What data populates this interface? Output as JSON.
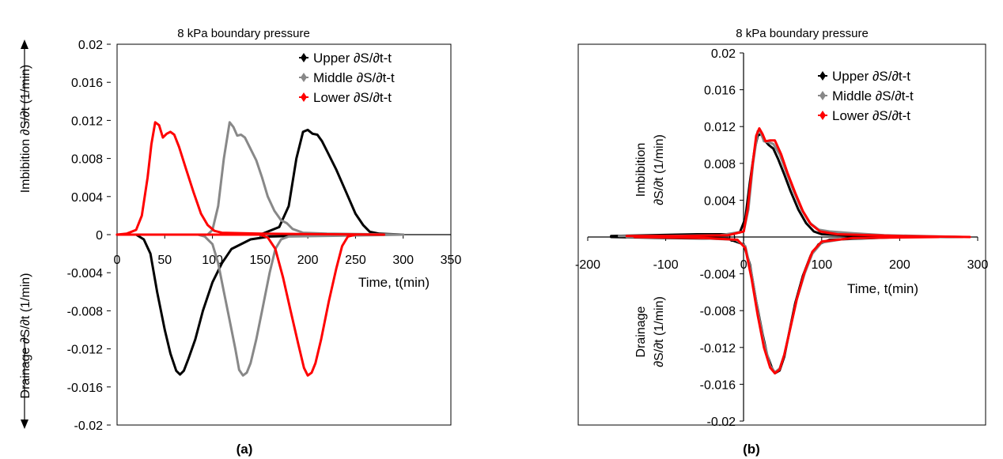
{
  "chart_data": [
    {
      "panel_label": "(a)",
      "type": "line",
      "title": "8 kPa boundary pressure",
      "xlabel": "Time, t(min)",
      "ylabel_top": "Imbibition ∂S/∂t (1/min)",
      "ylabel_bottom": "Drainage ∂S/∂t (1/min)",
      "xlim": [
        0,
        350
      ],
      "ylim": [
        -0.02,
        0.02
      ],
      "x_ticks": [
        "0",
        "50",
        "100",
        "150",
        "200",
        "250",
        "300",
        "350"
      ],
      "y_ticks": [
        "0.02",
        "0.016",
        "0.012",
        "0.008",
        "0.004",
        "0",
        "-0.004",
        "-0.008",
        "-0.012",
        "-0.016",
        "-0.02"
      ],
      "legend_position": "top-right",
      "series": [
        {
          "name": "Upper ∂S/∂t-t",
          "color": "#000000",
          "imbibition": [
            [
              0,
              0
            ],
            [
              150,
              0
            ],
            [
              170,
              0.0008
            ],
            [
              180,
              0.003
            ],
            [
              188,
              0.008
            ],
            [
              195,
              0.0108
            ],
            [
              200,
              0.011
            ],
            [
              205,
              0.0106
            ],
            [
              210,
              0.0105
            ],
            [
              215,
              0.0098
            ],
            [
              220,
              0.0088
            ],
            [
              230,
              0.0068
            ],
            [
              240,
              0.0045
            ],
            [
              250,
              0.0022
            ],
            [
              258,
              0.001
            ],
            [
              265,
              0.0003
            ],
            [
              275,
              0.0001
            ],
            [
              300,
              0
            ]
          ],
          "drainage": [
            [
              0,
              0
            ],
            [
              20,
              0
            ],
            [
              28,
              -0.0005
            ],
            [
              35,
              -0.002
            ],
            [
              42,
              -0.006
            ],
            [
              50,
              -0.01
            ],
            [
              56,
              -0.0125
            ],
            [
              62,
              -0.0143
            ],
            [
              66,
              -0.0147
            ],
            [
              70,
              -0.0143
            ],
            [
              75,
              -0.013
            ],
            [
              82,
              -0.011
            ],
            [
              90,
              -0.008
            ],
            [
              100,
              -0.005
            ],
            [
              110,
              -0.003
            ],
            [
              120,
              -0.0015
            ],
            [
              140,
              -0.0005
            ],
            [
              160,
              -0.0002
            ],
            [
              200,
              -0.0001
            ],
            [
              250,
              0
            ]
          ]
        },
        {
          "name": "Middle ∂S/∂t-t",
          "color": "#888888",
          "imbibition": [
            [
              0,
              0
            ],
            [
              95,
              0
            ],
            [
              100,
              0.0005
            ],
            [
              106,
              0.003
            ],
            [
              112,
              0.008
            ],
            [
              118,
              0.0118
            ],
            [
              122,
              0.0113
            ],
            [
              126,
              0.0104
            ],
            [
              130,
              0.0105
            ],
            [
              134,
              0.0102
            ],
            [
              140,
              0.009
            ],
            [
              146,
              0.0078
            ],
            [
              152,
              0.006
            ],
            [
              158,
              0.004
            ],
            [
              165,
              0.0025
            ],
            [
              172,
              0.0015
            ],
            [
              178,
              0.0012
            ],
            [
              184,
              0.0006
            ],
            [
              195,
              0.0002
            ],
            [
              220,
              0.0001
            ],
            [
              300,
              0
            ]
          ],
          "drainage": [
            [
              0,
              0
            ],
            [
              85,
              0
            ],
            [
              92,
              -0.0002
            ],
            [
              100,
              -0.001
            ],
            [
              106,
              -0.003
            ],
            [
              112,
              -0.006
            ],
            [
              118,
              -0.009
            ],
            [
              124,
              -0.012
            ],
            [
              128,
              -0.0142
            ],
            [
              132,
              -0.0148
            ],
            [
              136,
              -0.0145
            ],
            [
              140,
              -0.0135
            ],
            [
              146,
              -0.011
            ],
            [
              152,
              -0.008
            ],
            [
              160,
              -0.004
            ],
            [
              166,
              -0.0015
            ],
            [
              172,
              -0.0005
            ],
            [
              180,
              -0.0002
            ],
            [
              240,
              -0.0001
            ],
            [
              300,
              0
            ]
          ]
        },
        {
          "name": "Lower ∂S/∂t-t",
          "color": "#ff0000",
          "imbibition": [
            [
              0,
              0
            ],
            [
              10,
              0.0001
            ],
            [
              20,
              0.0005
            ],
            [
              26,
              0.002
            ],
            [
              32,
              0.006
            ],
            [
              36,
              0.0095
            ],
            [
              40,
              0.0118
            ],
            [
              44,
              0.0115
            ],
            [
              48,
              0.0102
            ],
            [
              52,
              0.0106
            ],
            [
              56,
              0.0108
            ],
            [
              60,
              0.0105
            ],
            [
              65,
              0.0092
            ],
            [
              72,
              0.007
            ],
            [
              80,
              0.0045
            ],
            [
              88,
              0.0022
            ],
            [
              95,
              0.001
            ],
            [
              102,
              0.0004
            ],
            [
              110,
              0.0002
            ],
            [
              150,
              0.0001
            ],
            [
              280,
              0
            ]
          ],
          "drainage": [
            [
              0,
              0
            ],
            [
              150,
              0
            ],
            [
              158,
              -0.0003
            ],
            [
              166,
              -0.0015
            ],
            [
              174,
              -0.0045
            ],
            [
              182,
              -0.008
            ],
            [
              190,
              -0.0115
            ],
            [
              196,
              -0.014
            ],
            [
              200,
              -0.0148
            ],
            [
              204,
              -0.0145
            ],
            [
              208,
              -0.0135
            ],
            [
              214,
              -0.011
            ],
            [
              222,
              -0.007
            ],
            [
              230,
              -0.0035
            ],
            [
              236,
              -0.0012
            ],
            [
              242,
              -0.0002
            ],
            [
              250,
              0
            ]
          ]
        }
      ]
    },
    {
      "panel_label": "(b)",
      "type": "line",
      "title": "8 kPa boundary pressure",
      "xlabel": "Time, t(min)",
      "ylabel_top_lines": [
        "Imbibition",
        "∂S/∂t (1/min)"
      ],
      "ylabel_bottom_lines": [
        "Drainage",
        "∂S/∂t (1/min)"
      ],
      "xlim": [
        -200,
        300
      ],
      "ylim": [
        -0.02,
        0.02
      ],
      "x_ticks": [
        "-200",
        "-100",
        "0",
        "100",
        "200",
        "300"
      ],
      "y_ticks": [
        "0.02",
        "0.016",
        "0.012",
        "0.008",
        "0.004",
        "0",
        "-0.004",
        "-0.008",
        "-0.012",
        "-0.016",
        "-0.02"
      ],
      "legend_position": "top-right",
      "series": [
        {
          "name": "Upper ∂S/∂t-t",
          "color": "#000000",
          "imbibition": [
            [
              -170,
              0.0001
            ],
            [
              -120,
              0.0002
            ],
            [
              -60,
              0.0003
            ],
            [
              -20,
              0.0003
            ],
            [
              -5,
              0.0005
            ],
            [
              2,
              0.002
            ],
            [
              8,
              0.006
            ],
            [
              14,
              0.0095
            ],
            [
              18,
              0.011
            ],
            [
              22,
              0.0112
            ],
            [
              26,
              0.0106
            ],
            [
              32,
              0.01
            ],
            [
              38,
              0.0096
            ],
            [
              44,
              0.0085
            ],
            [
              52,
              0.0068
            ],
            [
              60,
              0.005
            ],
            [
              70,
              0.003
            ],
            [
              80,
              0.0015
            ],
            [
              90,
              0.0006
            ],
            [
              100,
              0.0003
            ],
            [
              150,
              0.0001
            ],
            [
              280,
              0
            ]
          ],
          "drainage": [
            [
              -170,
              0
            ],
            [
              -100,
              -0.0001
            ],
            [
              -20,
              -0.0002
            ],
            [
              0,
              -0.0008
            ],
            [
              8,
              -0.003
            ],
            [
              16,
              -0.007
            ],
            [
              24,
              -0.0105
            ],
            [
              30,
              -0.0128
            ],
            [
              36,
              -0.0142
            ],
            [
              40,
              -0.0148
            ],
            [
              46,
              -0.0145
            ],
            [
              52,
              -0.013
            ],
            [
              58,
              -0.0105
            ],
            [
              66,
              -0.0072
            ],
            [
              76,
              -0.0042
            ],
            [
              86,
              -0.002
            ],
            [
              96,
              -0.0008
            ],
            [
              110,
              -0.0003
            ],
            [
              200,
              0
            ]
          ]
        },
        {
          "name": "Middle ∂S/∂t-t",
          "color": "#888888",
          "imbibition": [
            [
              -160,
              0.0001
            ],
            [
              -100,
              0.0001
            ],
            [
              -30,
              0.0002
            ],
            [
              0,
              0.0006
            ],
            [
              6,
              0.003
            ],
            [
              12,
              0.008
            ],
            [
              18,
              0.0115
            ],
            [
              22,
              0.0113
            ],
            [
              26,
              0.0104
            ],
            [
              32,
              0.0103
            ],
            [
              38,
              0.0101
            ],
            [
              46,
              0.009
            ],
            [
              54,
              0.0072
            ],
            [
              64,
              0.005
            ],
            [
              74,
              0.003
            ],
            [
              84,
              0.0016
            ],
            [
              96,
              0.0008
            ],
            [
              110,
              0.0006
            ],
            [
              140,
              0.0004
            ],
            [
              180,
              0.0002
            ],
            [
              280,
              0
            ]
          ],
          "drainage": [
            [
              -150,
              0
            ],
            [
              -60,
              -0.0001
            ],
            [
              -10,
              -0.0003
            ],
            [
              2,
              -0.001
            ],
            [
              10,
              -0.004
            ],
            [
              18,
              -0.008
            ],
            [
              26,
              -0.0115
            ],
            [
              34,
              -0.014
            ],
            [
              40,
              -0.0147
            ],
            [
              46,
              -0.0143
            ],
            [
              52,
              -0.0128
            ],
            [
              60,
              -0.0098
            ],
            [
              68,
              -0.0068
            ],
            [
              78,
              -0.004
            ],
            [
              88,
              -0.0018
            ],
            [
              100,
              -0.0006
            ],
            [
              130,
              -0.0002
            ],
            [
              200,
              0
            ]
          ]
        },
        {
          "name": "Lower ∂S/∂t-t",
          "color": "#ff0000",
          "imbibition": [
            [
              -150,
              0.0001
            ],
            [
              -80,
              0.0001
            ],
            [
              -20,
              0.0002
            ],
            [
              0,
              0.0006
            ],
            [
              5,
              0.003
            ],
            [
              10,
              0.007
            ],
            [
              16,
              0.011
            ],
            [
              20,
              0.0118
            ],
            [
              24,
              0.0112
            ],
            [
              28,
              0.0104
            ],
            [
              34,
              0.0105
            ],
            [
              40,
              0.0105
            ],
            [
              48,
              0.009
            ],
            [
              56,
              0.007
            ],
            [
              66,
              0.0048
            ],
            [
              76,
              0.0028
            ],
            [
              86,
              0.0014
            ],
            [
              98,
              0.0006
            ],
            [
              120,
              0.0003
            ],
            [
              200,
              0.0001
            ],
            [
              290,
              0
            ]
          ],
          "drainage": [
            [
              -140,
              0
            ],
            [
              -50,
              -0.0001
            ],
            [
              -8,
              -0.0003
            ],
            [
              2,
              -0.0012
            ],
            [
              10,
              -0.0045
            ],
            [
              18,
              -0.0085
            ],
            [
              26,
              -0.012
            ],
            [
              34,
              -0.0142
            ],
            [
              40,
              -0.0148
            ],
            [
              46,
              -0.0144
            ],
            [
              52,
              -0.0128
            ],
            [
              60,
              -0.0098
            ],
            [
              68,
              -0.0068
            ],
            [
              78,
              -0.0038
            ],
            [
              88,
              -0.0016
            ],
            [
              100,
              -0.0005
            ],
            [
              140,
              -0.0001
            ],
            [
              250,
              0
            ]
          ]
        }
      ]
    }
  ]
}
